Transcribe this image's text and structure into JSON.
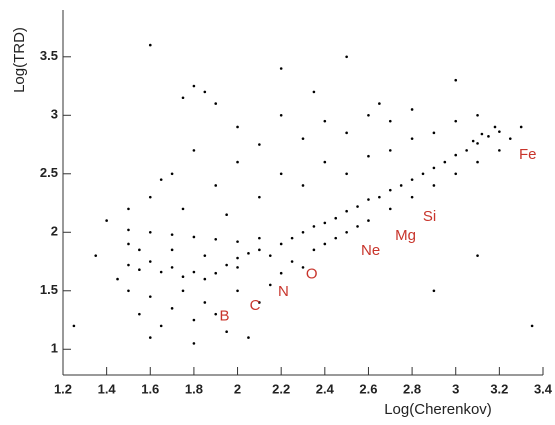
{
  "chart_data": {
    "type": "scatter",
    "x_label": "Log(Cherenkov)",
    "y_label": "Log(TRD)",
    "xlim": [
      1.2,
      3.4
    ],
    "ylim": [
      0.78,
      3.9
    ],
    "xticks": [
      1.2,
      1.4,
      1.6,
      1.8,
      2,
      2.2,
      2.4,
      2.6,
      2.8,
      3,
      3.2,
      3.4
    ],
    "yticks": [
      1,
      1.5,
      2,
      2.5,
      3,
      3.5
    ],
    "color": "#000000",
    "x": [
      1.5,
      1.55,
      1.6,
      1.65,
      1.7,
      1.75,
      1.8,
      1.85,
      1.9,
      1.95,
      2.0,
      2.05,
      2.1,
      2.15,
      2.2,
      2.25,
      2.3,
      2.35,
      2.4,
      2.45,
      2.5,
      2.55,
      2.6,
      2.65,
      2.7,
      2.75,
      2.8,
      2.85,
      2.9,
      2.95,
      3.0,
      3.05,
      3.1,
      3.15,
      3.2,
      3.18,
      3.12,
      3.08,
      1.5,
      1.6,
      1.7,
      1.8,
      1.9,
      2.0,
      2.1,
      1.6,
      1.7,
      1.75,
      1.8,
      1.85,
      1.8,
      1.9,
      1.75,
      1.9,
      2.0,
      2.0,
      2.1,
      2.1,
      2.2,
      2.2,
      2.3,
      2.3,
      2.4,
      2.4,
      2.5,
      2.5,
      2.6,
      2.6,
      2.7,
      2.7,
      2.8,
      2.8,
      2.9,
      3.0,
      3.1,
      2.2,
      1.6,
      2.5,
      1.4,
      1.5,
      1.65,
      2.35,
      2.65,
      3.0,
      1.95,
      1.5,
      1.55,
      1.6,
      1.65,
      1.7,
      1.75,
      1.8,
      1.85,
      1.9,
      1.95,
      2.0,
      2.05,
      2.1,
      2.15,
      2.2,
      2.25,
      2.3,
      2.35,
      2.4,
      2.45,
      2.5,
      2.55,
      2.6,
      2.7,
      2.8,
      2.9,
      3.0,
      3.1,
      3.2,
      1.45,
      1.35,
      1.6,
      1.8,
      3.3,
      3.25,
      3.35,
      2.9,
      3.1,
      1.25,
      1.5,
      1.55,
      1.7,
      1.85,
      2.0
    ],
    "values": [
      1.72,
      1.68,
      1.75,
      1.66,
      1.7,
      1.62,
      1.66,
      1.6,
      1.65,
      1.72,
      1.78,
      1.82,
      1.85,
      1.8,
      1.9,
      1.95,
      2.0,
      2.05,
      2.08,
      2.12,
      2.18,
      2.22,
      2.28,
      2.3,
      2.36,
      2.4,
      2.45,
      2.5,
      2.55,
      2.6,
      2.66,
      2.7,
      2.76,
      2.82,
      2.86,
      2.9,
      2.84,
      2.78,
      2.02,
      2.0,
      1.98,
      1.96,
      1.94,
      1.92,
      1.95,
      2.3,
      2.5,
      2.2,
      2.7,
      3.2,
      3.25,
      3.1,
      3.15,
      2.4,
      2.6,
      2.9,
      2.3,
      2.75,
      2.5,
      3.0,
      2.4,
      2.8,
      2.6,
      2.95,
      2.5,
      2.85,
      2.65,
      3.0,
      2.7,
      2.95,
      2.8,
      3.05,
      2.85,
      2.95,
      3.0,
      3.4,
      3.6,
      3.5,
      2.1,
      2.2,
      2.45,
      3.2,
      3.1,
      3.3,
      2.15,
      1.5,
      1.3,
      1.45,
      1.2,
      1.35,
      1.5,
      1.25,
      1.4,
      1.3,
      1.15,
      1.5,
      1.1,
      1.4,
      1.55,
      1.65,
      1.75,
      1.7,
      1.85,
      1.9,
      1.95,
      2.0,
      2.05,
      2.1,
      2.2,
      2.3,
      2.4,
      2.5,
      2.6,
      2.7,
      1.6,
      1.8,
      1.1,
      1.05,
      2.9,
      2.8,
      1.2,
      1.5,
      1.8,
      1.2,
      1.9,
      1.85,
      1.85,
      1.8,
      1.7
    ],
    "annotations": [
      {
        "text": "B",
        "x": 1.94,
        "y": 1.28
      },
      {
        "text": "C",
        "x": 2.08,
        "y": 1.37
      },
      {
        "text": "N",
        "x": 2.21,
        "y": 1.49
      },
      {
        "text": "O",
        "x": 2.34,
        "y": 1.64
      },
      {
        "text": "Ne",
        "x": 2.61,
        "y": 1.84
      },
      {
        "text": "Mg",
        "x": 2.77,
        "y": 1.97
      },
      {
        "text": "Si",
        "x": 2.88,
        "y": 2.13
      },
      {
        "text": "Fe",
        "x": 3.33,
        "y": 2.66
      }
    ]
  }
}
